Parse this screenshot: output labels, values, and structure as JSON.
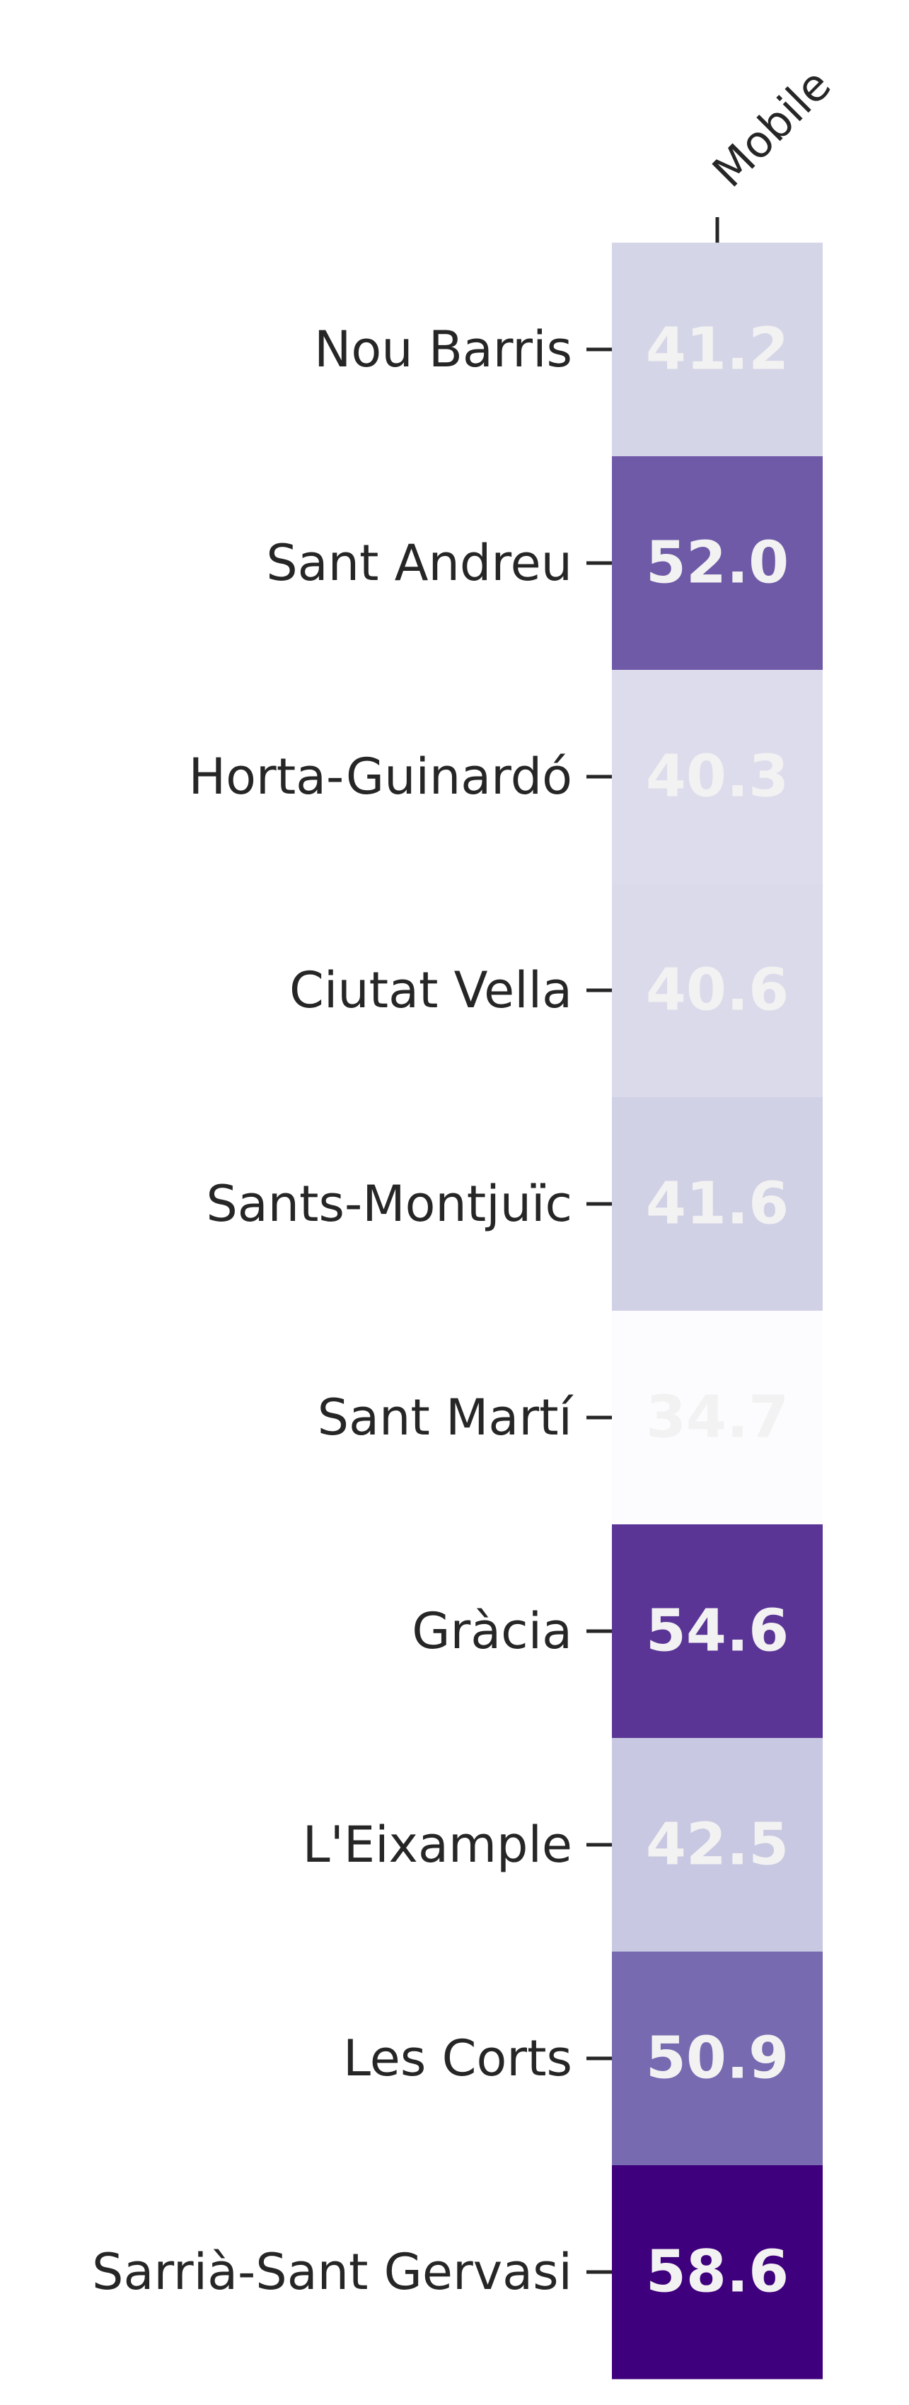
{
  "chart_data": {
    "type": "heatmap",
    "columns": [
      "Mobile"
    ],
    "rows": [
      "Nou Barris",
      "Sant Andreu",
      "Horta-Guinardó",
      "Ciutat Vella",
      "Sants-Montjuïc",
      "Sant Martí",
      "Gràcia",
      "L'Eixample",
      "Les Corts",
      "Sarrià-Sant Gervasi"
    ],
    "values": [
      [
        41.2
      ],
      [
        52.0
      ],
      [
        40.3
      ],
      [
        40.6
      ],
      [
        41.6
      ],
      [
        34.7
      ],
      [
        54.6
      ],
      [
        42.5
      ],
      [
        50.9
      ],
      [
        58.6
      ]
    ],
    "value_labels": [
      "41.2",
      "52.0",
      "40.3",
      "40.6",
      "41.6",
      "34.7",
      "54.6",
      "42.5",
      "50.9",
      "58.6"
    ],
    "colormap": "Purples",
    "colorbar": false,
    "annotation_color": "#f2f2f2"
  }
}
